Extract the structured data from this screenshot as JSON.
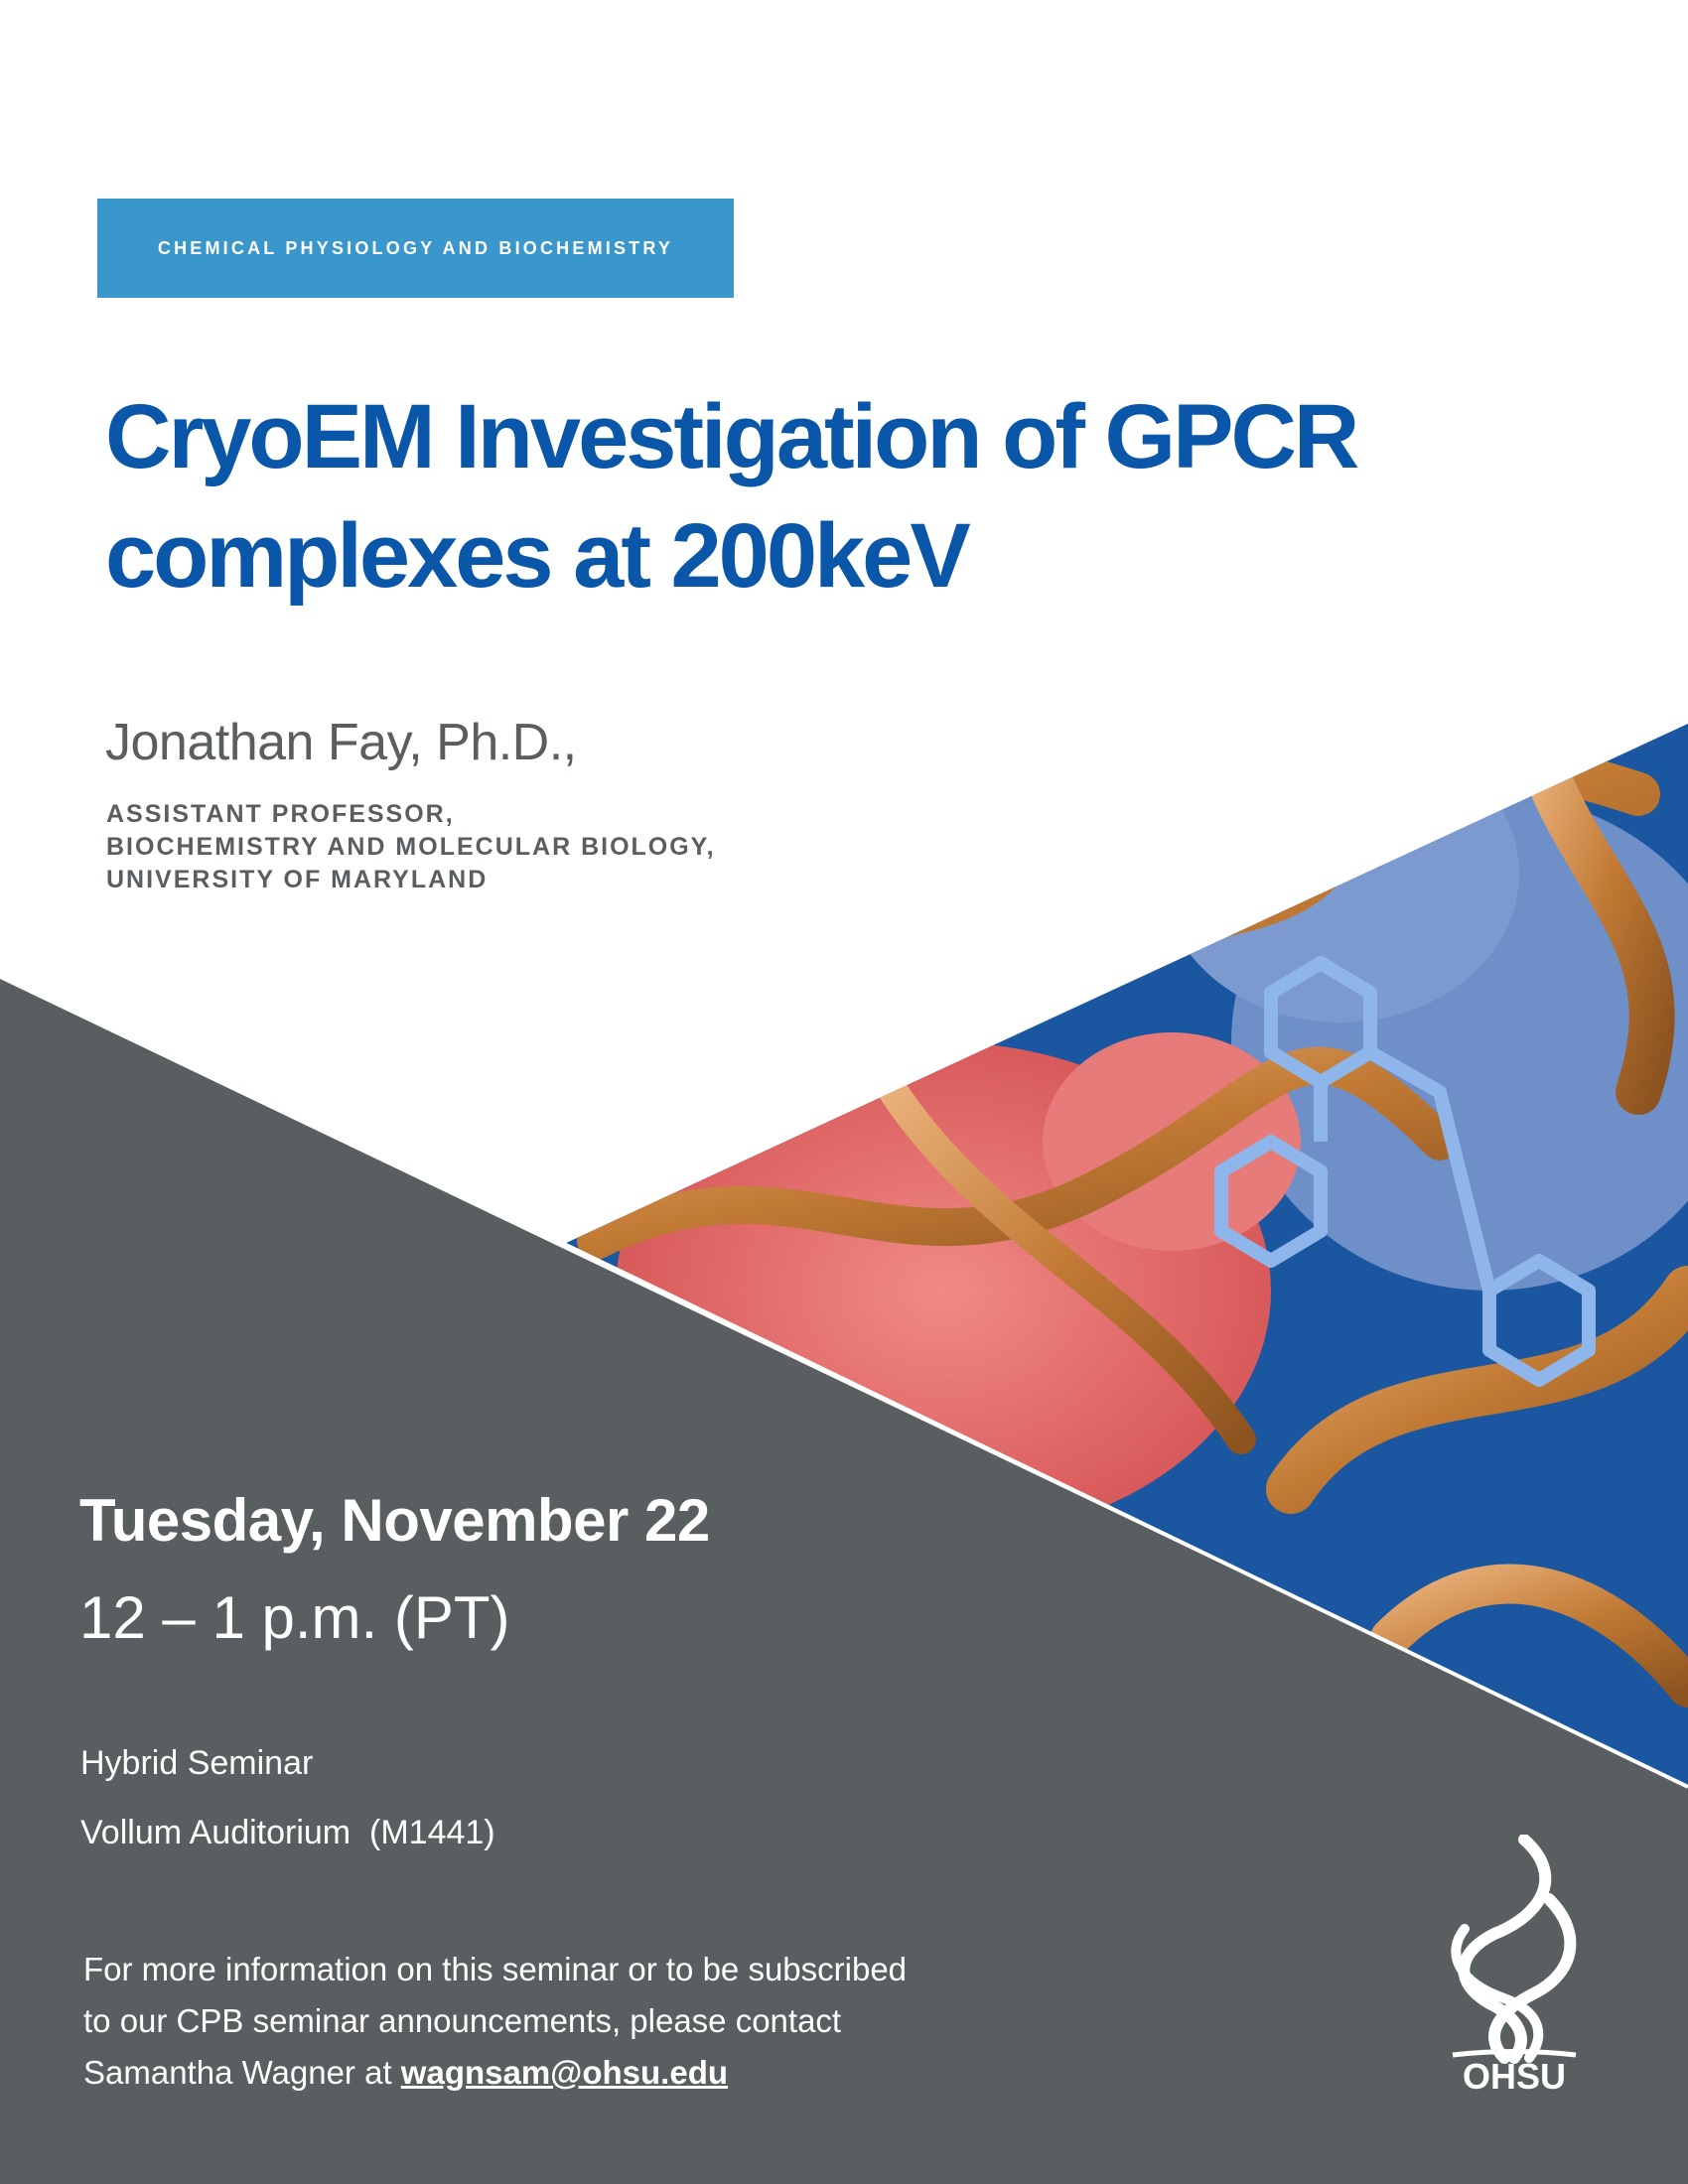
{
  "department": "CHEMICAL PHYSIOLOGY AND BIOCHEMISTRY",
  "title_lines": [
    "CryoEM Investigation of GPCR",
    "complexes at 200keV"
  ],
  "speaker": {
    "name": "Jonathan Fay, Ph.D.,",
    "affiliation_lines": [
      "ASSISTANT PROFESSOR,",
      "BIOCHEMISTRY AND MOLECULAR BIOLOGY,",
      "UNIVERSITY OF MARYLAND"
    ]
  },
  "event": {
    "date": "Tuesday, November 22",
    "time": "12 – 1 p.m. (PT)",
    "format": "Hybrid Seminar",
    "location": "Vollum Auditorium  (M1441)"
  },
  "contact": {
    "line1": "For more information on this seminar or to be subscribed",
    "line2": "to our CPB seminar announcements, please contact",
    "line3_prefix": "Samantha Wagner at ",
    "email": "wagnsam@ohsu.edu"
  },
  "logo_text": "OHSU",
  "colors": {
    "banner": "#3a97cc",
    "title": "#0a56a8",
    "panel": "#595e60",
    "text_gray": "#5a5e60"
  }
}
